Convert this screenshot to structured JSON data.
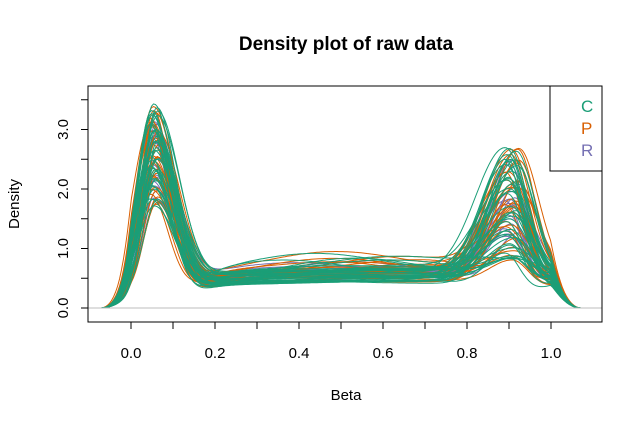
{
  "chart_data": {
    "type": "line",
    "title": "Density plot of raw data",
    "xlabel": "Beta",
    "ylabel": "Density",
    "xlim": [
      -0.1,
      1.1
    ],
    "ylim": [
      0,
      3.6
    ],
    "x_ticks": [
      "0.0",
      "0.2",
      "0.4",
      "0.6",
      "0.8",
      "1.0"
    ],
    "y_ticks": [
      "0.0",
      "1.0",
      "2.0",
      "3.0"
    ],
    "grid": false,
    "legend_position": "top-right",
    "series": [
      {
        "name": "C",
        "color": "#1b9e77"
      },
      {
        "name": "P",
        "color": "#d95f02"
      },
      {
        "name": "R",
        "color": "#7570b3"
      }
    ],
    "curve_summary": {
      "left_peak_x": 0.05,
      "left_peak_density_range": [
        1.85,
        3.6
      ],
      "trough_density_range": [
        0.35,
        0.8
      ],
      "right_peak_x": 0.91,
      "right_peak_density_range": [
        1.3,
        2.9
      ]
    }
  }
}
